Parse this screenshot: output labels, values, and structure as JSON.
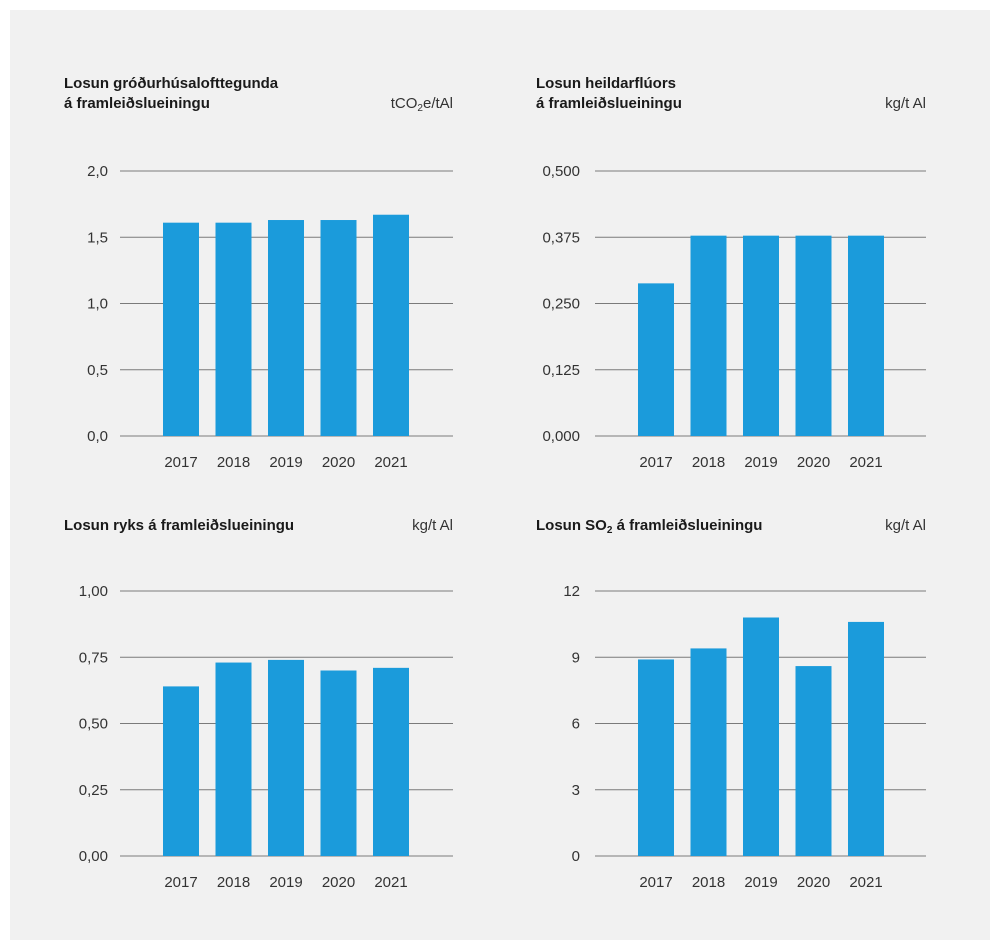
{
  "colors": {
    "bar": "#1b9bdb",
    "grid": "#7a7a7a",
    "background": "#f1f1f1"
  },
  "chart_data": [
    {
      "type": "bar",
      "title": "Losun gróðurhúsalofttegunda á framleiðslueiningu",
      "title_lines": [
        "Losun gróðurhúsalofttegunda",
        "á framleiðslueiningu"
      ],
      "unit": {
        "pre": "tCO",
        "sub": "2",
        "post": "e/tAl"
      },
      "categories": [
        "2017",
        "2018",
        "2019",
        "2020",
        "2021"
      ],
      "values": [
        1.61,
        1.61,
        1.63,
        1.63,
        1.67
      ],
      "yticks": [
        "0,0",
        "0,5",
        "1,0",
        "1,5",
        "2,0"
      ],
      "ylim": [
        0,
        2.0
      ],
      "grid": true
    },
    {
      "type": "bar",
      "title": "Losun heildarflúors á framleiðslueiningu",
      "title_lines": [
        "Losun heildarflúors",
        "á framleiðslueiningu"
      ],
      "unit": {
        "pre": "kg/t Al",
        "sub": "",
        "post": ""
      },
      "categories": [
        "2017",
        "2018",
        "2019",
        "2020",
        "2021"
      ],
      "values": [
        0.288,
        0.378,
        0.378,
        0.378,
        0.378
      ],
      "yticks": [
        "0,000",
        "0,125",
        "0,250",
        "0,375",
        "0,500"
      ],
      "ylim": [
        0,
        0.5
      ],
      "grid": true
    },
    {
      "type": "bar",
      "title": "Losun ryks á framleiðslueiningu",
      "title_lines": [
        "Losun ryks á framleiðslueiningu"
      ],
      "unit": {
        "pre": "kg/t Al",
        "sub": "",
        "post": ""
      },
      "categories": [
        "2017",
        "2018",
        "2019",
        "2020",
        "2021"
      ],
      "values": [
        0.64,
        0.73,
        0.74,
        0.7,
        0.71
      ],
      "yticks": [
        "0,00",
        "0,25",
        "0,50",
        "0,75",
        "1,00"
      ],
      "ylim": [
        0,
        1.0
      ],
      "grid": true
    },
    {
      "type": "bar",
      "title": "Losun SO2 á framleiðslueiningu",
      "title_parts": {
        "pre": "Losun SO",
        "sub": "2",
        "post": " á framleiðslueiningu"
      },
      "unit": {
        "pre": "kg/t Al",
        "sub": "",
        "post": ""
      },
      "categories": [
        "2017",
        "2018",
        "2019",
        "2020",
        "2021"
      ],
      "values": [
        8.9,
        9.4,
        10.8,
        8.6,
        10.6
      ],
      "yticks": [
        "0",
        "3",
        "6",
        "9",
        "12"
      ],
      "ylim": [
        0,
        12
      ],
      "grid": true
    }
  ]
}
